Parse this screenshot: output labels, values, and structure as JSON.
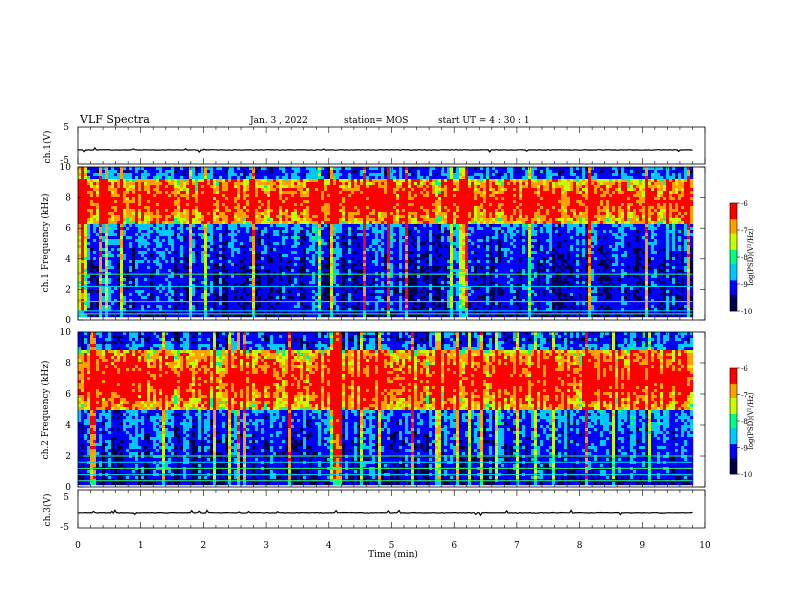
{
  "header": {
    "title": "VLF Spectra",
    "date": "Jan. 3 , 2022",
    "station": "station= MOS",
    "start_ut": "start UT =  4 : 30 : 1"
  },
  "chart_data": [
    {
      "type": "line",
      "panel": "ch1-waveform",
      "ylabel": "ch.1(V)",
      "ylim": [
        -5,
        5
      ],
      "yticks": [
        "5",
        "-5"
      ],
      "x": [
        0,
        9.8
      ],
      "values": [
        -1.2,
        -1.2
      ],
      "line_color": "#000000"
    },
    {
      "type": "heatmap",
      "panel": "ch1-spectrogram",
      "ylabel": "ch.1 Frequency (kHz)",
      "ylim": [
        0,
        10
      ],
      "yticks": [
        "0",
        "2",
        "4",
        "6",
        "8",
        "10"
      ],
      "xlim": [
        0,
        10
      ],
      "data_xmax": 9.8,
      "colorbar": {
        "label": "log(PSD)(V²/Hz)",
        "range": [
          -10,
          -6
        ],
        "ticks": [
          "-6",
          "-7",
          "-8",
          "-9",
          "-10"
        ]
      },
      "bands_khz": [
        6.3,
        9.2
      ],
      "hlines_khz": [
        0.4,
        0.6,
        1.2,
        2.2,
        3.0
      ]
    },
    {
      "type": "heatmap",
      "panel": "ch2-spectrogram",
      "ylabel": "ch.2 Frequency (kHz)",
      "ylim": [
        0,
        10
      ],
      "yticks": [
        "0",
        "2",
        "4",
        "6",
        "8",
        "10"
      ],
      "xlim": [
        0,
        10
      ],
      "data_xmax": 9.8,
      "colorbar": {
        "label": "log(PSD)(V²/Hz)",
        "range": [
          -10,
          -6
        ],
        "ticks": [
          "-6",
          "-7",
          "-8",
          "-9",
          "-10"
        ]
      },
      "bands_khz": [
        5.0,
        8.8
      ],
      "hlines_khz": [
        0.4,
        0.8,
        1.2,
        1.6,
        2.0
      ]
    },
    {
      "type": "line",
      "panel": "ch3-waveform",
      "ylabel": "ch.3(V)",
      "ylim": [
        -5,
        5
      ],
      "yticks": [
        "5",
        "-5"
      ],
      "x": [
        0,
        9.8
      ],
      "values": [
        -1.0,
        -1.0
      ],
      "line_color": "#000000"
    }
  ],
  "xaxis": {
    "label": "Time  (min)",
    "ticks": [
      "0",
      "1",
      "2",
      "3",
      "4",
      "5",
      "6",
      "7",
      "8",
      "9",
      "10"
    ],
    "xlim": [
      0,
      10
    ]
  },
  "colors": {
    "colormap": [
      "#00004a",
      "#0000ff",
      "#00c8ff",
      "#00ff80",
      "#c8ff00",
      "#ffa000",
      "#ff0000",
      "#ffffff"
    ]
  }
}
